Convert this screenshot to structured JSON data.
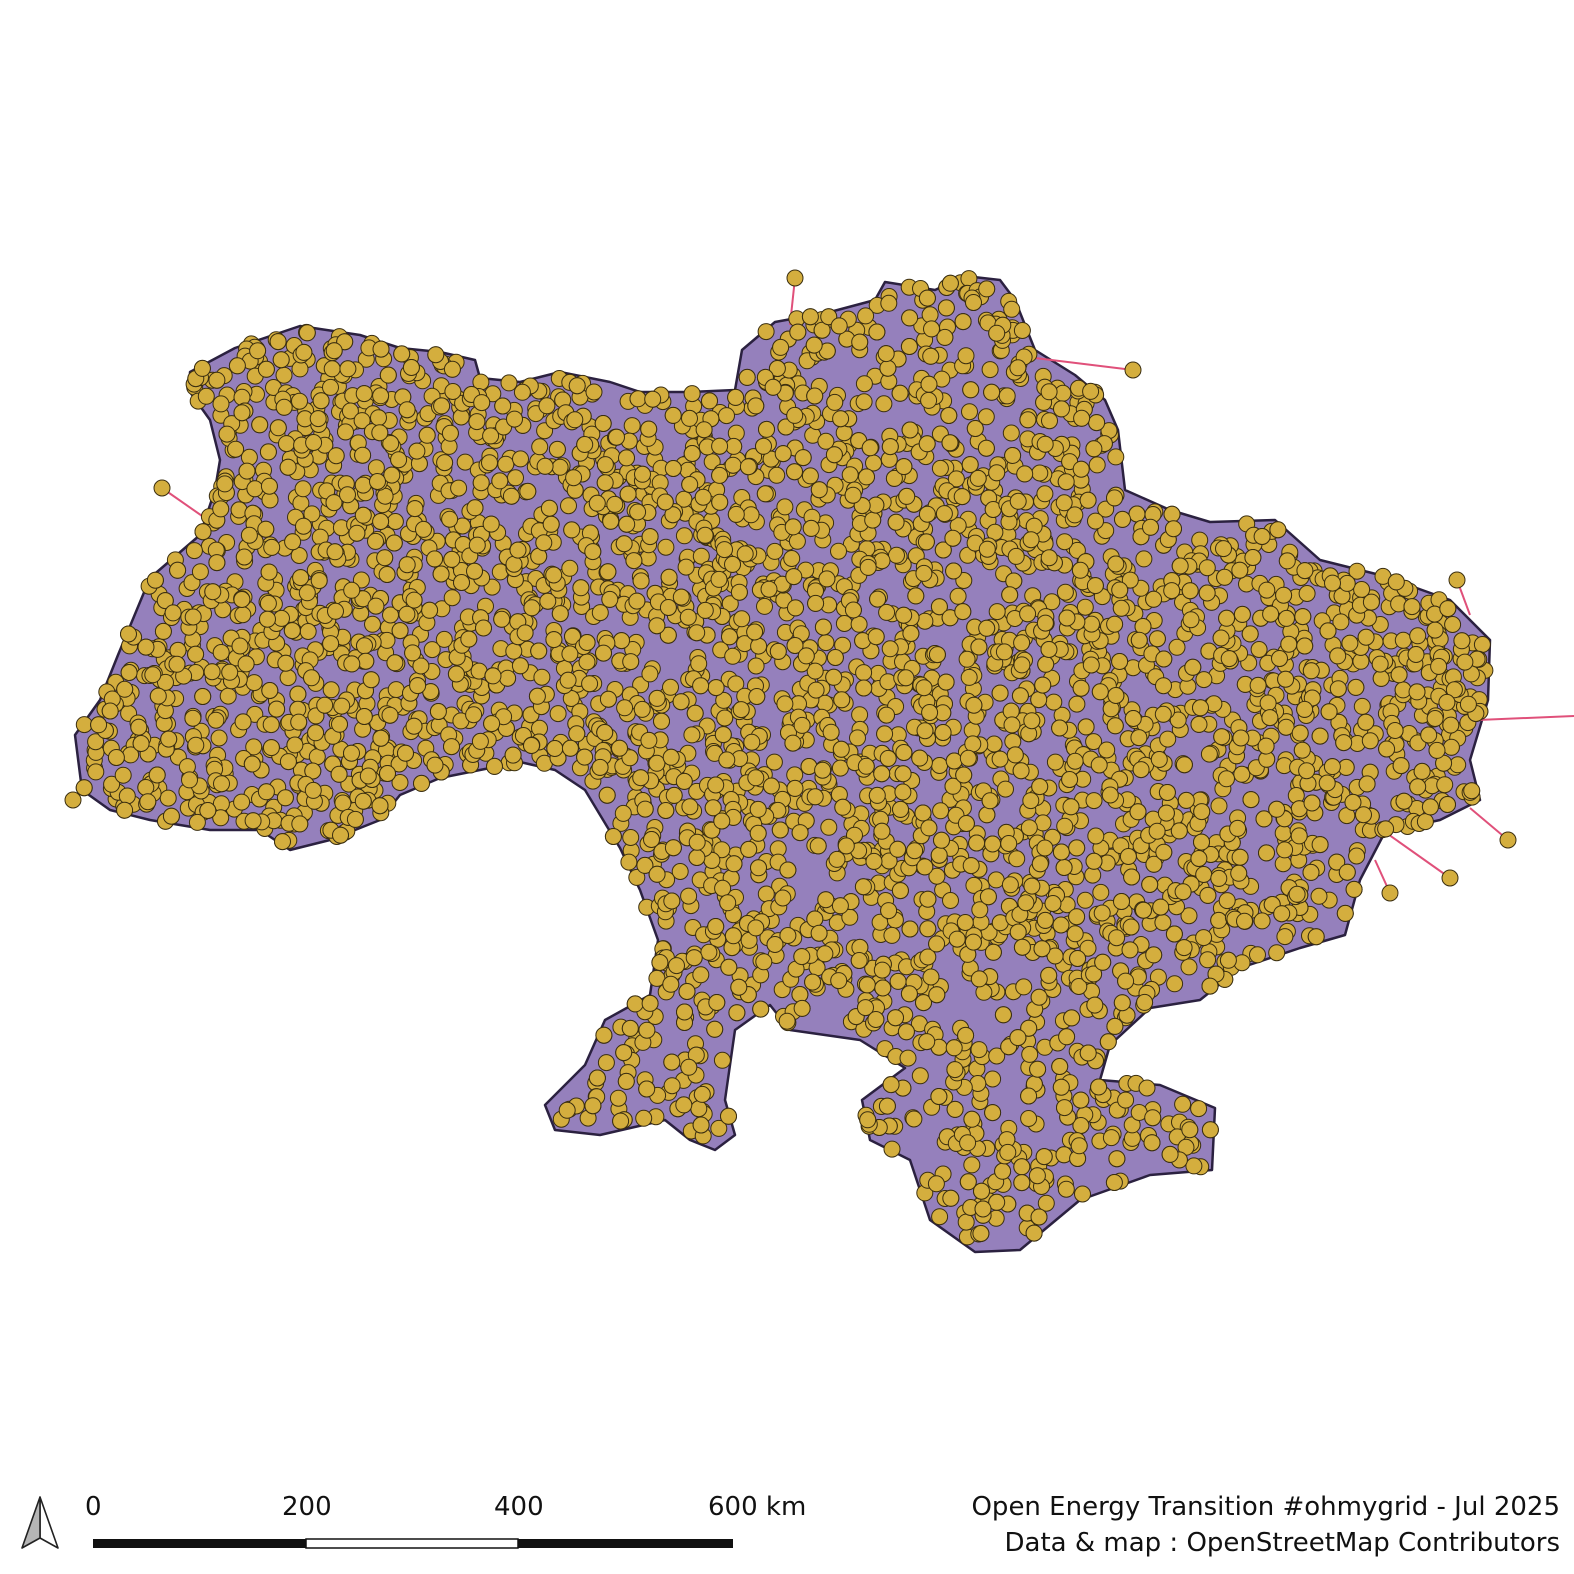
{
  "map": {
    "colors": {
      "country_fill": "#9580BC",
      "country_stroke": "#2B2140",
      "substation_fill": "#D4AE3E",
      "substation_stroke": "#3A2E10",
      "line_color": "#E0507A"
    },
    "layers": [
      "country-area",
      "power-lines",
      "substations"
    ],
    "symbol": "circle"
  },
  "scale_bar": {
    "labels": [
      "0",
      "200",
      "400",
      "600 km"
    ]
  },
  "north_arrow": {
    "icon": "north-arrow-icon"
  },
  "credits": {
    "line1": "Open Energy Transition #ohmygrid - Jul 2025",
    "line2": "Data & map : OpenStreetMap Contributors"
  }
}
